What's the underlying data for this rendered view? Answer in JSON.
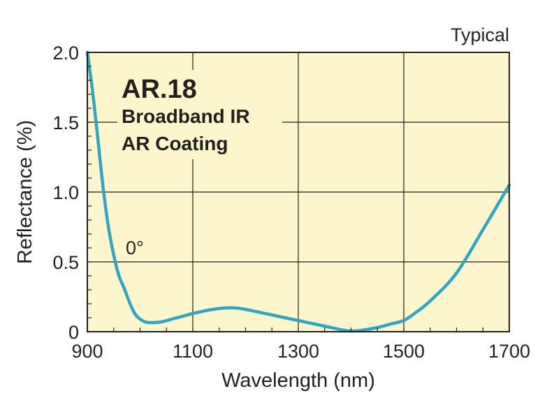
{
  "chart_data": {
    "type": "line",
    "title": "AR.18",
    "subtitle_lines": [
      "Broadband IR",
      "AR Coating"
    ],
    "corner_note": "Typical",
    "curve_label": "0°",
    "xlabel": "Wavelength (nm)",
    "ylabel": "Reflectance (%)",
    "xlim": [
      900,
      1700
    ],
    "ylim": [
      0,
      2.0
    ],
    "x_ticks": [
      "900",
      "1100",
      "1300",
      "1500",
      "1700"
    ],
    "y_ticks": [
      "0",
      "0.5",
      "1.0",
      "1.5",
      "2.0"
    ],
    "grid": true,
    "background_color": "#fdf6cd",
    "line_color": "#2ea6c4",
    "series": [
      {
        "x": [
          900,
          910,
          920,
          930,
          940,
          950,
          960,
          970,
          980,
          990,
          1000,
          1010,
          1020,
          1040,
          1060,
          1080,
          1100,
          1130,
          1160,
          1180,
          1200,
          1250,
          1300,
          1350,
          1380,
          1400,
          1420,
          1450,
          1480,
          1500,
          1520,
          1550,
          1600,
          1650,
          1700
        ],
        "y": [
          2.0,
          1.72,
          1.38,
          1.03,
          0.75,
          0.55,
          0.4,
          0.31,
          0.21,
          0.13,
          0.09,
          0.07,
          0.065,
          0.07,
          0.09,
          0.11,
          0.13,
          0.155,
          0.17,
          0.17,
          0.16,
          0.12,
          0.08,
          0.04,
          0.015,
          0.005,
          0.01,
          0.03,
          0.06,
          0.08,
          0.13,
          0.22,
          0.42,
          0.73,
          1.05
        ]
      }
    ]
  }
}
